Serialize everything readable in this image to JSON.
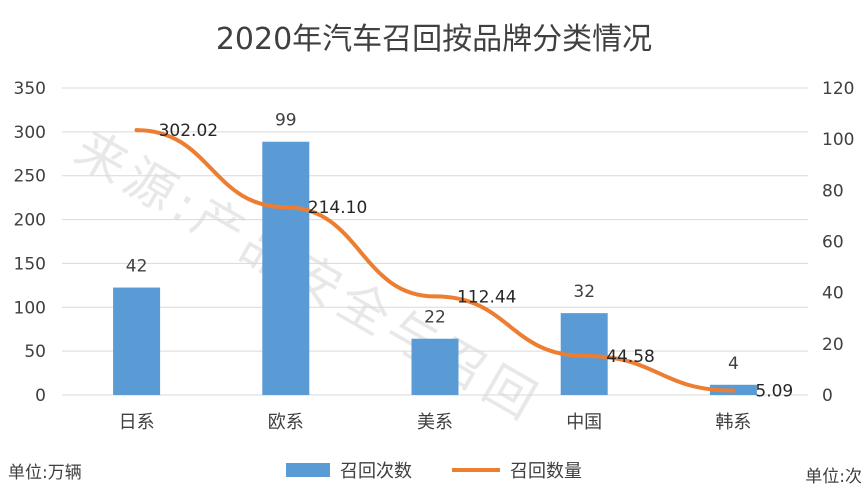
{
  "chart_data": {
    "type": "bar",
    "title": "2020年汽车召回按品牌分类情况",
    "categories": [
      "日系",
      "欧系",
      "美系",
      "中国",
      "韩系"
    ],
    "series": [
      {
        "name": "召回次数",
        "type": "bar",
        "axis": "right",
        "values": [
          42,
          99,
          22,
          32,
          4
        ]
      },
      {
        "name": "召回数量",
        "type": "line",
        "axis": "left",
        "values": [
          302.02,
          214.1,
          112.44,
          44.58,
          5.09
        ]
      }
    ],
    "bar_value_labels": [
      "42",
      "99",
      "22",
      "32",
      "4"
    ],
    "line_value_labels": [
      "302.02",
      "214.10",
      "112.44",
      "44.58",
      "5.09"
    ],
    "y_left": {
      "ylim": [
        0,
        350
      ],
      "ticks": [
        "0",
        "50",
        "100",
        "150",
        "200",
        "250",
        "300",
        "350"
      ]
    },
    "y_right": {
      "ylim": [
        0,
        120
      ],
      "ticks": [
        "0",
        "20",
        "40",
        "60",
        "80",
        "100",
        "120"
      ]
    },
    "grid": true,
    "legend": "bottom",
    "colors": {
      "bar": "#5b9bd5",
      "line": "#ed7d31",
      "grid": "#d9d9d9",
      "text": "#404040"
    }
  },
  "units": {
    "left": "单位:万辆",
    "right": "单位:次"
  },
  "watermark": "来源:产品安全与召回"
}
